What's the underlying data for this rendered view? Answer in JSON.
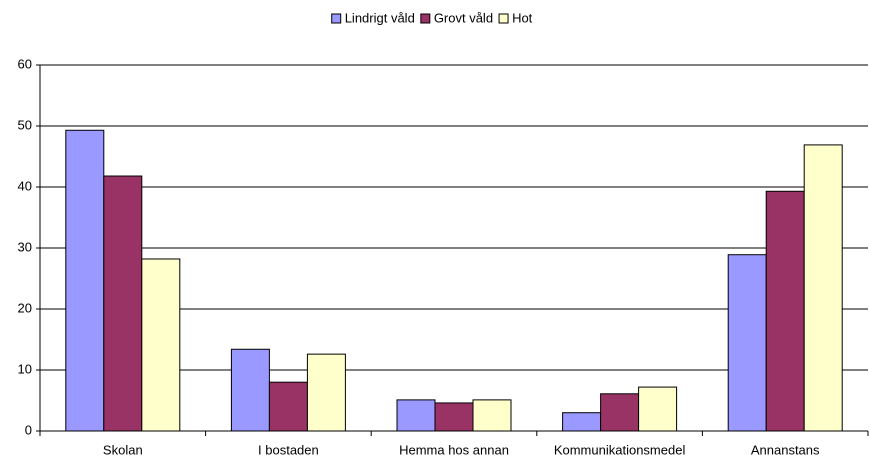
{
  "chart_data": {
    "type": "bar",
    "categories": [
      "Skolan",
      "I bostaden",
      "Hemma hos annan",
      "Kommunikationsmedel",
      "Annanstans"
    ],
    "series": [
      {
        "name": "Lindrigt våld",
        "color": "#9999ff",
        "values": [
          49.3,
          13.4,
          5.1,
          3.0,
          28.9
        ]
      },
      {
        "name": "Grovt våld",
        "color": "#993366",
        "values": [
          41.8,
          8.0,
          4.6,
          6.1,
          39.3
        ]
      },
      {
        "name": "Hot",
        "color": "#ffffcc",
        "values": [
          28.2,
          12.6,
          5.1,
          7.2,
          46.9
        ]
      }
    ],
    "ylim": [
      0,
      60
    ],
    "yticks": [
      0,
      10,
      20,
      30,
      40,
      50,
      60
    ],
    "grid": true,
    "legend": "top"
  }
}
